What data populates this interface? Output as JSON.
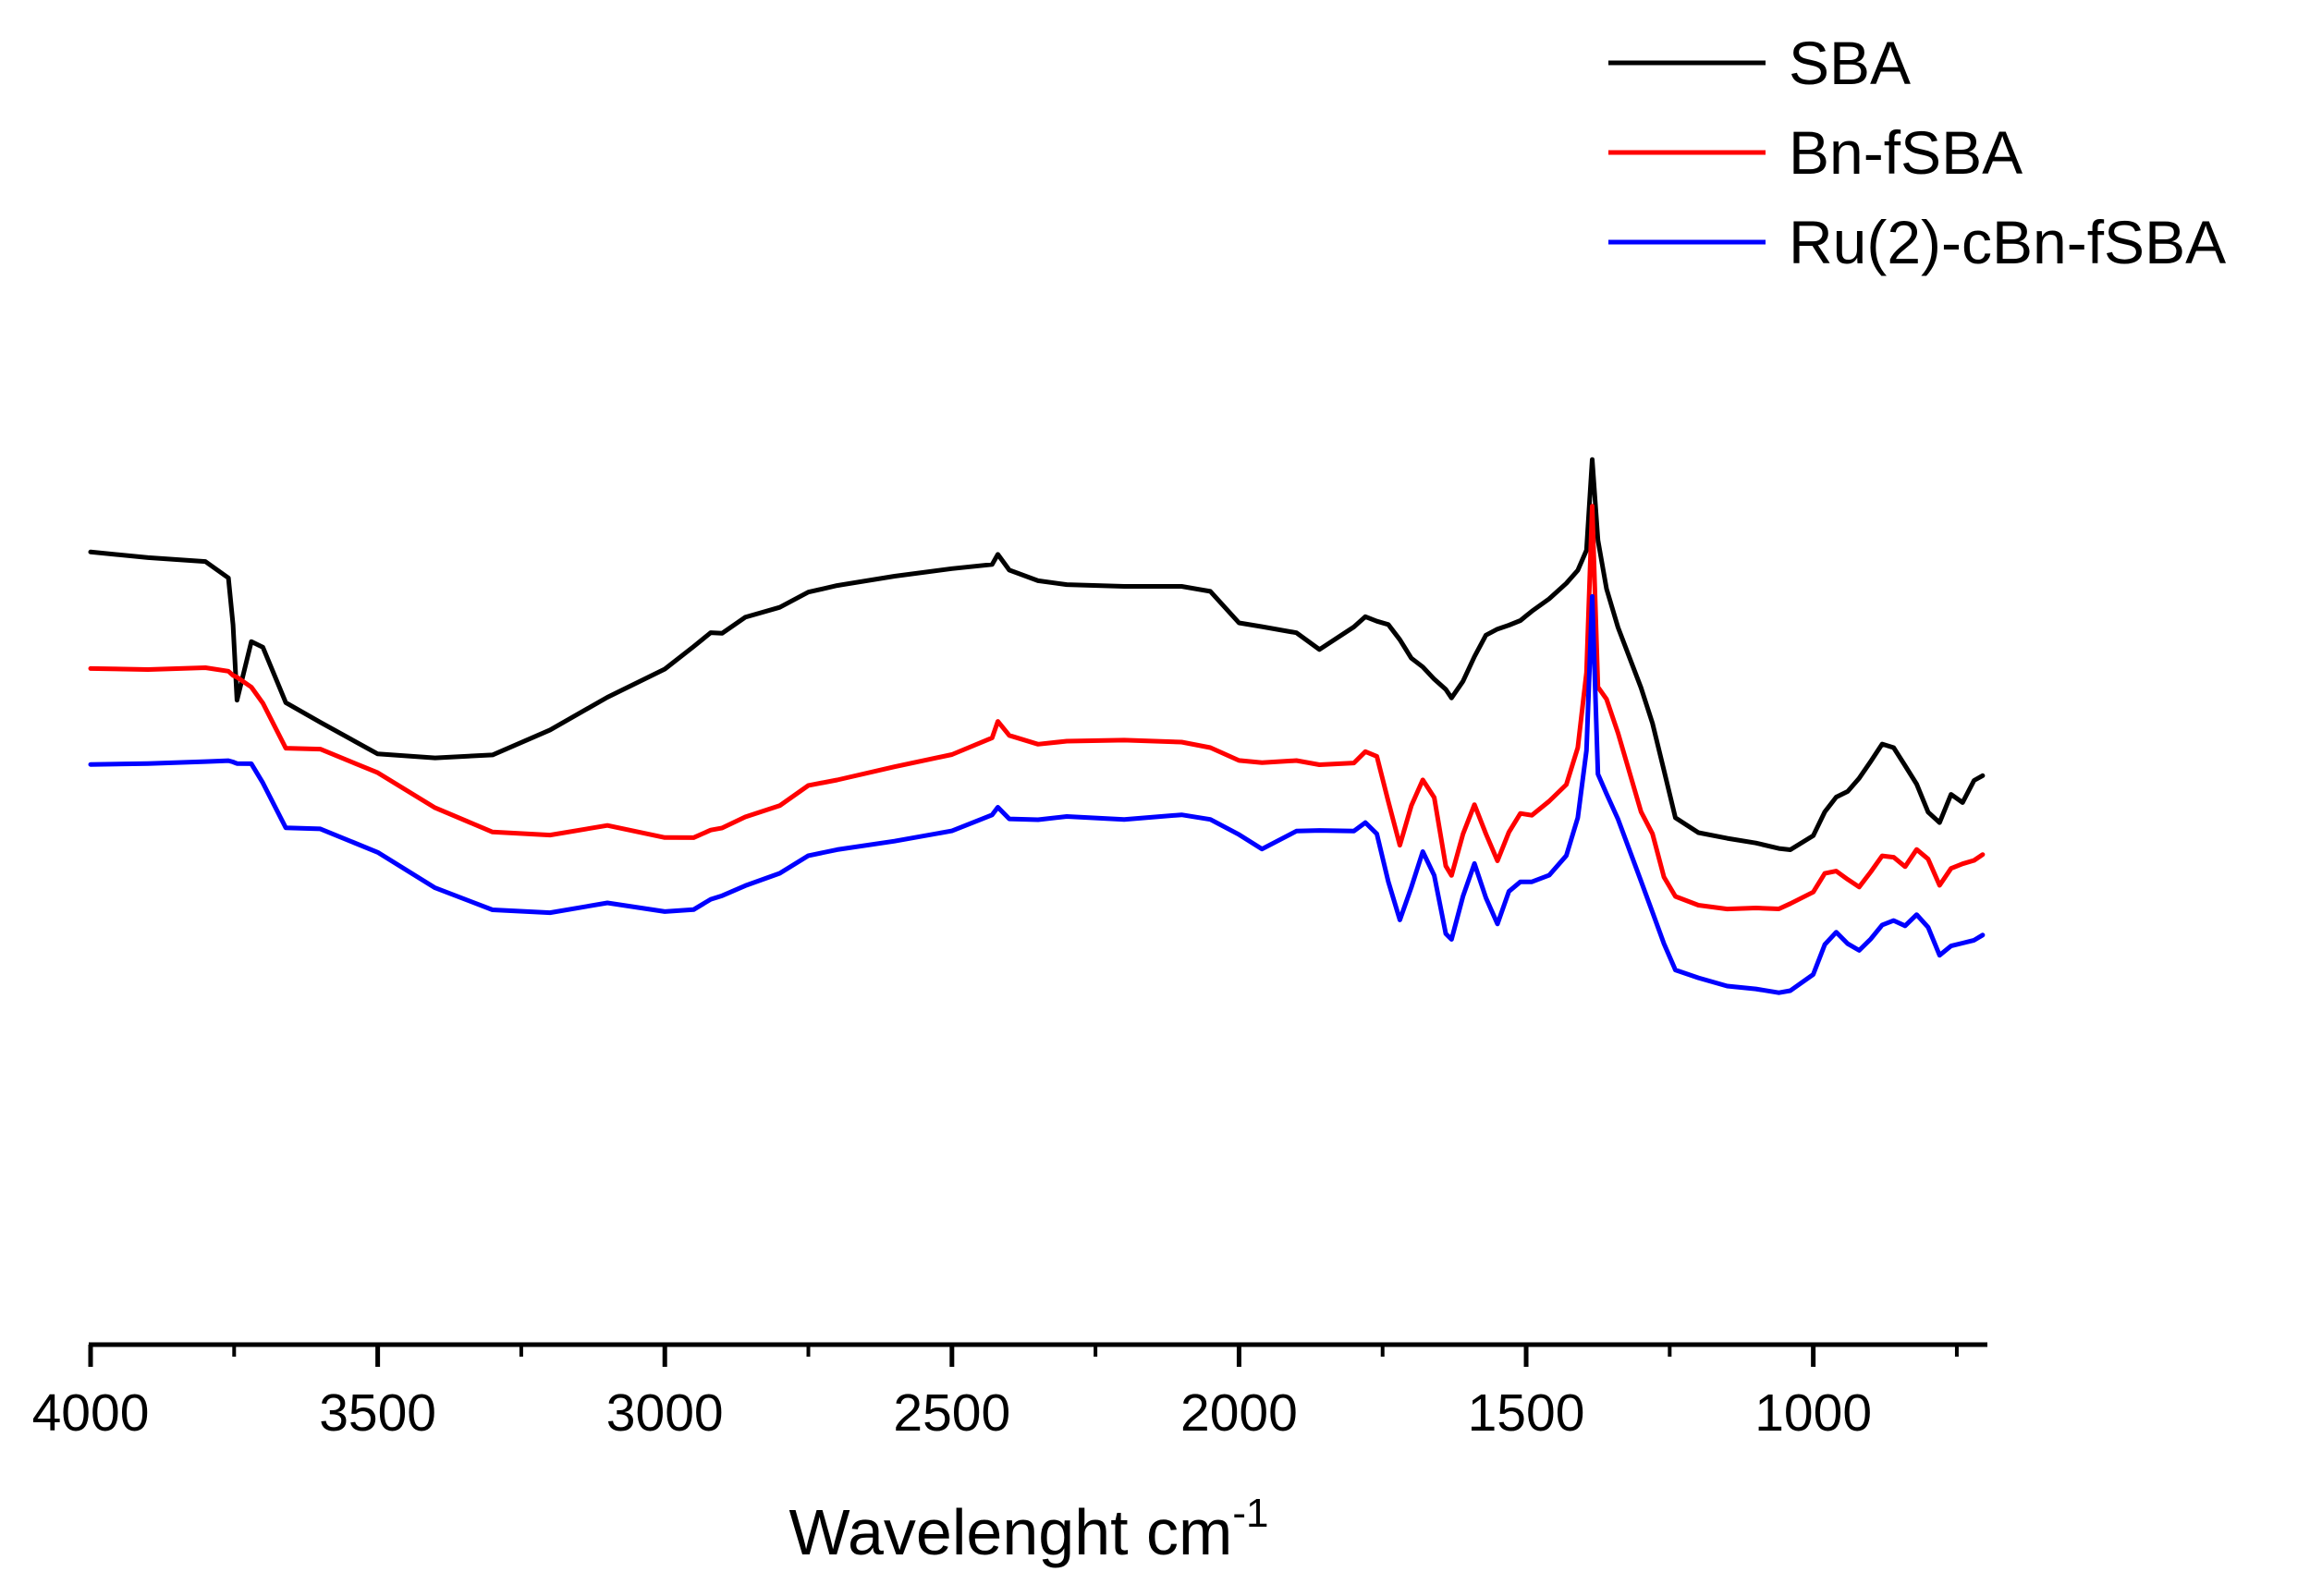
{
  "chart_data": {
    "type": "line",
    "title": "",
    "xlabel": "Wavelenght cm",
    "xlabel_superscript": "-1",
    "ylabel": "",
    "xlim": [
      4000,
      700
    ],
    "ylim": [
      0,
      100
    ],
    "x_reversed": true,
    "y_axis_visible": false,
    "grid": false,
    "legend_position": "top-right",
    "x_ticks": [
      4000,
      3500,
      3000,
      2500,
      2000,
      1500,
      1000
    ],
    "x_tick_labels": [
      "4000",
      "3500",
      "3000",
      "2500",
      "2000",
      "1500",
      "1000"
    ],
    "x_minor_ticks": [
      3750,
      3250,
      2750,
      2250,
      1750,
      1250,
      750
    ],
    "x": [
      4000,
      3900,
      3800,
      3760,
      3752,
      3745,
      3720,
      3700,
      3660,
      3600,
      3500,
      3400,
      3300,
      3200,
      3100,
      3000,
      2950,
      2920,
      2900,
      2860,
      2800,
      2750,
      2700,
      2600,
      2500,
      2430,
      2420,
      2400,
      2350,
      2300,
      2200,
      2100,
      2050,
      2000,
      1960,
      1900,
      1860,
      1800,
      1780,
      1760,
      1740,
      1720,
      1700,
      1680,
      1660,
      1640,
      1630,
      1610,
      1590,
      1570,
      1550,
      1530,
      1510,
      1490,
      1460,
      1430,
      1410,
      1395,
      1385,
      1375,
      1360,
      1340,
      1300,
      1280,
      1260,
      1240,
      1200,
      1150,
      1100,
      1060,
      1040,
      1000,
      980,
      960,
      940,
      920,
      900,
      880,
      860,
      840,
      820,
      800,
      780,
      760,
      740,
      720,
      705
    ],
    "series": [
      {
        "name": "SBA",
        "color": "#000000",
        "values": [
          84.5,
          83.8,
          83.3,
          81.5,
          76.5,
          68.5,
          74.8,
          74.3,
          68.5,
          66.5,
          63.2,
          62.8,
          63.1,
          65.7,
          69.1,
          72.0,
          74.3,
          75.7,
          75.6,
          77.3,
          78.4,
          80.1,
          80.9,
          82.0,
          82.9,
          83.4,
          84.5,
          82.8,
          81.6,
          81.1,
          80.8,
          80.7,
          80.1,
          76.7,
          76.3,
          75.7,
          74.0,
          76.5,
          77.7,
          77.3,
          77.0,
          75.4,
          73.4,
          72.4,
          71.0,
          69.8,
          68.8,
          70.5,
          73.1,
          75.4,
          76.1,
          76.6,
          77.2,
          78.3,
          79.7,
          81.4,
          82.8,
          84.9,
          94.5,
          85.8,
          80.5,
          76.3,
          69.8,
          66.0,
          61.0,
          56.0,
          54.5,
          54.0,
          53.6,
          53.1,
          53.0,
          54.5,
          57.0,
          58.5,
          59.0,
          60.3,
          62.0,
          63.8,
          63.4,
          61.5,
          59.6,
          56.7,
          55.7,
          58.8,
          58.0,
          60.4,
          60.9
        ]
      },
      {
        "name": "Bn-fSBA",
        "color": "#ff0000",
        "values": [
          72.0,
          72.0,
          72.3,
          72.0,
          71.6,
          71.4,
          70.3,
          68.5,
          63.6,
          63.4,
          60.8,
          57.0,
          54.4,
          54.1,
          55.2,
          54.0,
          54.1,
          55.0,
          55.3,
          56.5,
          57.7,
          59.8,
          60.3,
          61.6,
          62.8,
          64.5,
          66.2,
          64.7,
          63.8,
          64.2,
          64.4,
          64.3,
          63.8,
          62.5,
          62.3,
          62.5,
          62.0,
          62.1,
          63.2,
          62.6,
          57.7,
          53.0,
          57.2,
          60.0,
          58.2,
          51.0,
          50.1,
          54.6,
          57.8,
          54.7,
          51.8,
          54.8,
          56.7,
          56.4,
          57.8,
          59.5,
          63.4,
          71.4,
          89.2,
          70.0,
          68.8,
          65.3,
          57.0,
          54.7,
          50.1,
          48.0,
          47.0,
          46.5,
          46.5,
          46.3,
          46.8,
          48.0,
          50.0,
          50.3,
          49.5,
          48.8,
          50.5,
          52.3,
          52.2,
          51.2,
          53.0,
          51.9,
          49.0,
          50.7,
          51.1,
          51.4,
          52.0
        ]
      },
      {
        "name": "Ru(2)-cBn-fSBA",
        "color": "#0000ff",
        "values": [
          62.0,
          62.0,
          62.1,
          62.1,
          61.9,
          61.7,
          61.7,
          59.7,
          55.0,
          55.0,
          52.6,
          48.9,
          46.6,
          46.3,
          47.3,
          46.3,
          46.4,
          47.4,
          47.7,
          48.7,
          50.0,
          51.9,
          52.6,
          53.6,
          54.8,
          56.6,
          57.5,
          56.3,
          56.2,
          56.5,
          56.1,
          56.5,
          55.9,
          54.2,
          52.6,
          54.5,
          54.6,
          54.6,
          55.6,
          54.5,
          49.5,
          45.5,
          49.0,
          52.8,
          50.2,
          43.9,
          43.2,
          47.7,
          51.1,
          47.4,
          44.6,
          48.1,
          49.2,
          49.3,
          50.1,
          52.3,
          56.4,
          63.6,
          80.0,
          61.0,
          58.8,
          56.0,
          49.3,
          45.9,
          42.5,
          39.7,
          38.9,
          38.1,
          37.9,
          37.6,
          37.9,
          39.7,
          42.9,
          44.2,
          42.9,
          42.1,
          43.2,
          44.6,
          45.0,
          44.4,
          45.6,
          44.3,
          41.4,
          42.5,
          42.9,
          43.3,
          43.9
        ]
      }
    ]
  }
}
